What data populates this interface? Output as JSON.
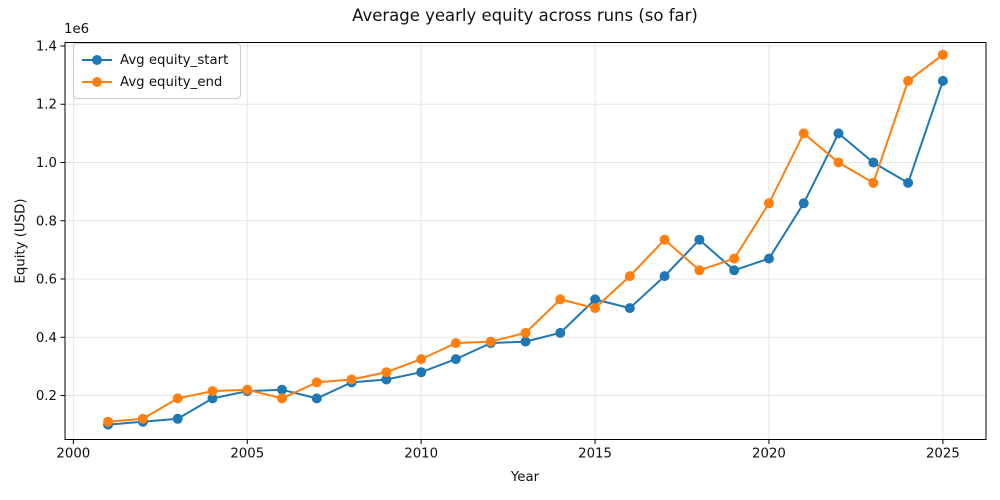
{
  "chart_data": {
    "type": "line",
    "title": "Average yearly equity across runs (so far)",
    "xlabel": "Year",
    "ylabel": "Equity (USD)",
    "offset_text": "1e6",
    "grid": true,
    "legend_position": "upper left",
    "x": [
      2001,
      2002,
      2003,
      2004,
      2005,
      2006,
      2007,
      2008,
      2009,
      2010,
      2011,
      2012,
      2013,
      2014,
      2015,
      2016,
      2017,
      2018,
      2019,
      2020,
      2021,
      2022,
      2023,
      2024,
      2025
    ],
    "series": [
      {
        "name": "Avg equity_start",
        "color": "#1f77b4",
        "values": [
          100000,
          110000,
          120000,
          190000,
          215000,
          220000,
          190000,
          245000,
          255000,
          280000,
          325000,
          380000,
          385000,
          415000,
          530000,
          500000,
          610000,
          735000,
          630000,
          670000,
          860000,
          1100000,
          1000000,
          930000,
          1280000
        ]
      },
      {
        "name": "Avg equity_end",
        "color": "#ff7f0e",
        "values": [
          110000,
          120000,
          190000,
          215000,
          220000,
          190000,
          245000,
          255000,
          280000,
          325000,
          380000,
          385000,
          415000,
          530000,
          500000,
          610000,
          735000,
          630000,
          670000,
          860000,
          1100000,
          1000000,
          930000,
          1280000,
          1370000
        ]
      }
    ],
    "xticks": {
      "values": [
        2000,
        2005,
        2010,
        2015,
        2020,
        2025
      ],
      "labels": [
        "2000",
        "2005",
        "2010",
        "2015",
        "2020",
        "2025"
      ]
    },
    "yticks": {
      "values": [
        200000,
        400000,
        600000,
        800000,
        1000000,
        1200000,
        1400000
      ],
      "labels": [
        "0.2",
        "0.4",
        "0.6",
        "0.8",
        "1.0",
        "1.2",
        "1.4"
      ]
    },
    "xlim": [
      1999.76,
      2026.24
    ],
    "ylim": [
      49000,
      1412000
    ]
  }
}
